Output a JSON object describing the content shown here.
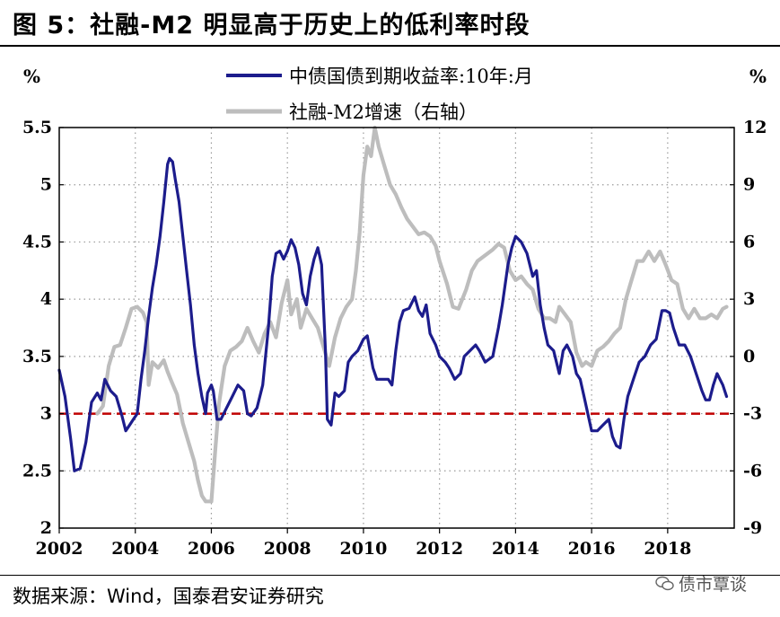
{
  "figure_label": "图 5：社融-M2 明显高于历史上的低利率时段",
  "source": "数据来源：Wind，国泰君安证券研究",
  "watermark": "债市覃谈",
  "watermark_icon": "wechat-icon",
  "chart_data": {
    "type": "line",
    "left_axis": {
      "unit_label": "%",
      "ylim": [
        2,
        5.5
      ],
      "ticks": [
        2,
        2.5,
        3,
        3.5,
        4,
        4.5,
        5,
        5.5
      ]
    },
    "right_axis": {
      "unit_label": "%",
      "ylim": [
        -9,
        12
      ],
      "ticks": [
        -9,
        -6,
        -3,
        0,
        3,
        6,
        9,
        12
      ]
    },
    "x_axis": {
      "xlim": [
        2002,
        2019.75
      ],
      "ticks": [
        2002,
        2004,
        2006,
        2008,
        2010,
        2012,
        2014,
        2016,
        2018
      ]
    },
    "grid": "dotted",
    "legend_position": "top-center",
    "series": [
      {
        "name": "中债国债到期收益率:10年:月",
        "axis": "left",
        "color": "#1c1c8c",
        "points": [
          [
            2002.0,
            3.38
          ],
          [
            2002.15,
            3.15
          ],
          [
            2002.3,
            2.78
          ],
          [
            2002.4,
            2.5
          ],
          [
            2002.55,
            2.52
          ],
          [
            2002.7,
            2.75
          ],
          [
            2002.85,
            3.1
          ],
          [
            2003.0,
            3.18
          ],
          [
            2003.1,
            3.12
          ],
          [
            2003.2,
            3.3
          ],
          [
            2003.35,
            3.2
          ],
          [
            2003.5,
            3.15
          ],
          [
            2003.65,
            2.98
          ],
          [
            2003.75,
            2.85
          ],
          [
            2003.85,
            2.9
          ],
          [
            2003.95,
            2.95
          ],
          [
            2004.05,
            3.0
          ],
          [
            2004.15,
            3.3
          ],
          [
            2004.25,
            3.55
          ],
          [
            2004.35,
            3.85
          ],
          [
            2004.45,
            4.1
          ],
          [
            2004.55,
            4.3
          ],
          [
            2004.65,
            4.55
          ],
          [
            2004.75,
            4.85
          ],
          [
            2004.85,
            5.18
          ],
          [
            2004.9,
            5.23
          ],
          [
            2004.98,
            5.2
          ],
          [
            2005.05,
            5.05
          ],
          [
            2005.15,
            4.85
          ],
          [
            2005.25,
            4.55
          ],
          [
            2005.35,
            4.25
          ],
          [
            2005.45,
            3.95
          ],
          [
            2005.55,
            3.6
          ],
          [
            2005.65,
            3.35
          ],
          [
            2005.75,
            3.15
          ],
          [
            2005.85,
            3.0
          ],
          [
            2005.9,
            3.18
          ],
          [
            2006.0,
            3.25
          ],
          [
            2006.05,
            3.2
          ],
          [
            2006.15,
            2.95
          ],
          [
            2006.25,
            2.95
          ],
          [
            2006.4,
            3.05
          ],
          [
            2006.55,
            3.15
          ],
          [
            2006.7,
            3.25
          ],
          [
            2006.85,
            3.2
          ],
          [
            2006.95,
            3.0
          ],
          [
            2007.05,
            2.98
          ],
          [
            2007.2,
            3.05
          ],
          [
            2007.35,
            3.25
          ],
          [
            2007.5,
            3.75
          ],
          [
            2007.6,
            4.2
          ],
          [
            2007.7,
            4.4
          ],
          [
            2007.8,
            4.42
          ],
          [
            2007.9,
            4.35
          ],
          [
            2008.0,
            4.42
          ],
          [
            2008.1,
            4.52
          ],
          [
            2008.2,
            4.45
          ],
          [
            2008.3,
            4.3
          ],
          [
            2008.4,
            4.05
          ],
          [
            2008.5,
            3.95
          ],
          [
            2008.6,
            4.2
          ],
          [
            2008.7,
            4.35
          ],
          [
            2008.8,
            4.45
          ],
          [
            2008.9,
            4.3
          ],
          [
            2009.0,
            3.55
          ],
          [
            2009.05,
            2.95
          ],
          [
            2009.15,
            2.9
          ],
          [
            2009.25,
            3.18
          ],
          [
            2009.35,
            3.15
          ],
          [
            2009.5,
            3.2
          ],
          [
            2009.6,
            3.45
          ],
          [
            2009.7,
            3.5
          ],
          [
            2009.85,
            3.55
          ],
          [
            2010.0,
            3.65
          ],
          [
            2010.1,
            3.68
          ],
          [
            2010.25,
            3.4
          ],
          [
            2010.35,
            3.3
          ],
          [
            2010.5,
            3.3
          ],
          [
            2010.65,
            3.3
          ],
          [
            2010.75,
            3.25
          ],
          [
            2010.85,
            3.55
          ],
          [
            2010.95,
            3.8
          ],
          [
            2011.05,
            3.9
          ],
          [
            2011.2,
            3.92
          ],
          [
            2011.35,
            4.02
          ],
          [
            2011.45,
            3.9
          ],
          [
            2011.55,
            3.85
          ],
          [
            2011.65,
            3.95
          ],
          [
            2011.75,
            3.7
          ],
          [
            2011.9,
            3.6
          ],
          [
            2012.0,
            3.5
          ],
          [
            2012.15,
            3.45
          ],
          [
            2012.25,
            3.4
          ],
          [
            2012.4,
            3.3
          ],
          [
            2012.55,
            3.35
          ],
          [
            2012.65,
            3.5
          ],
          [
            2012.8,
            3.55
          ],
          [
            2012.95,
            3.6
          ],
          [
            2013.05,
            3.55
          ],
          [
            2013.2,
            3.45
          ],
          [
            2013.4,
            3.5
          ],
          [
            2013.55,
            3.75
          ],
          [
            2013.65,
            3.95
          ],
          [
            2013.8,
            4.3
          ],
          [
            2013.9,
            4.45
          ],
          [
            2014.0,
            4.55
          ],
          [
            2014.15,
            4.5
          ],
          [
            2014.3,
            4.4
          ],
          [
            2014.45,
            4.2
          ],
          [
            2014.55,
            4.25
          ],
          [
            2014.65,
            3.95
          ],
          [
            2014.75,
            3.75
          ],
          [
            2014.85,
            3.6
          ],
          [
            2015.0,
            3.55
          ],
          [
            2015.15,
            3.35
          ],
          [
            2015.25,
            3.55
          ],
          [
            2015.35,
            3.6
          ],
          [
            2015.5,
            3.5
          ],
          [
            2015.6,
            3.35
          ],
          [
            2015.7,
            3.3
          ],
          [
            2015.8,
            3.15
          ],
          [
            2015.9,
            3.0
          ],
          [
            2016.0,
            2.85
          ],
          [
            2016.15,
            2.85
          ],
          [
            2016.3,
            2.9
          ],
          [
            2016.45,
            2.95
          ],
          [
            2016.55,
            2.8
          ],
          [
            2016.65,
            2.72
          ],
          [
            2016.75,
            2.7
          ],
          [
            2016.85,
            2.95
          ],
          [
            2016.95,
            3.15
          ],
          [
            2017.1,
            3.3
          ],
          [
            2017.25,
            3.45
          ],
          [
            2017.4,
            3.5
          ],
          [
            2017.55,
            3.6
          ],
          [
            2017.7,
            3.65
          ],
          [
            2017.85,
            3.9
          ],
          [
            2017.95,
            3.9
          ],
          [
            2018.05,
            3.88
          ],
          [
            2018.15,
            3.75
          ],
          [
            2018.3,
            3.6
          ],
          [
            2018.45,
            3.6
          ],
          [
            2018.6,
            3.5
          ],
          [
            2018.75,
            3.35
          ],
          [
            2018.9,
            3.2
          ],
          [
            2019.0,
            3.12
          ],
          [
            2019.1,
            3.12
          ],
          [
            2019.2,
            3.25
          ],
          [
            2019.3,
            3.35
          ],
          [
            2019.45,
            3.25
          ],
          [
            2019.55,
            3.15
          ]
        ]
      },
      {
        "name": "社融-M2增速（右轴）",
        "axis": "right",
        "color": "#bdbdbd",
        "points": [
          [
            2003.0,
            -3.0
          ],
          [
            2003.15,
            -2.6
          ],
          [
            2003.3,
            -0.5
          ],
          [
            2003.45,
            0.5
          ],
          [
            2003.6,
            0.6
          ],
          [
            2003.75,
            1.5
          ],
          [
            2003.9,
            2.5
          ],
          [
            2004.05,
            2.6
          ],
          [
            2004.2,
            2.3
          ],
          [
            2004.3,
            1.8
          ],
          [
            2004.35,
            -1.5
          ],
          [
            2004.45,
            -0.3
          ],
          [
            2004.6,
            -0.6
          ],
          [
            2004.75,
            -0.2
          ],
          [
            2004.85,
            -0.8
          ],
          [
            2004.95,
            -1.3
          ],
          [
            2005.1,
            -2.0
          ],
          [
            2005.25,
            -3.5
          ],
          [
            2005.4,
            -4.5
          ],
          [
            2005.55,
            -5.5
          ],
          [
            2005.65,
            -6.5
          ],
          [
            2005.75,
            -7.3
          ],
          [
            2005.85,
            -7.6
          ],
          [
            2006.0,
            -7.6
          ],
          [
            2006.1,
            -5.0
          ],
          [
            2006.2,
            -2.5
          ],
          [
            2006.35,
            -0.5
          ],
          [
            2006.5,
            0.3
          ],
          [
            2006.65,
            0.5
          ],
          [
            2006.8,
            0.8
          ],
          [
            2006.95,
            1.5
          ],
          [
            2007.1,
            0.8
          ],
          [
            2007.25,
            0.2
          ],
          [
            2007.4,
            1.2
          ],
          [
            2007.55,
            1.8
          ],
          [
            2007.7,
            1.0
          ],
          [
            2007.85,
            2.8
          ],
          [
            2008.0,
            4.0
          ],
          [
            2008.1,
            2.2
          ],
          [
            2008.25,
            3.0
          ],
          [
            2008.35,
            1.5
          ],
          [
            2008.5,
            2.5
          ],
          [
            2008.65,
            2.0
          ],
          [
            2008.8,
            1.5
          ],
          [
            2008.95,
            0.5
          ],
          [
            2009.1,
            -0.5
          ],
          [
            2009.25,
            1.0
          ],
          [
            2009.4,
            2.0
          ],
          [
            2009.55,
            2.6
          ],
          [
            2009.7,
            3.0
          ],
          [
            2009.8,
            4.5
          ],
          [
            2009.9,
            6.5
          ],
          [
            2010.0,
            9.5
          ],
          [
            2010.1,
            11.0
          ],
          [
            2010.2,
            10.5
          ],
          [
            2010.3,
            12.0
          ],
          [
            2010.4,
            11.0
          ],
          [
            2010.55,
            10.0
          ],
          [
            2010.7,
            9.0
          ],
          [
            2010.85,
            8.5
          ],
          [
            2011.0,
            7.8
          ],
          [
            2011.15,
            7.2
          ],
          [
            2011.3,
            6.8
          ],
          [
            2011.45,
            6.4
          ],
          [
            2011.6,
            6.5
          ],
          [
            2011.75,
            6.3
          ],
          [
            2011.9,
            5.8
          ],
          [
            2012.0,
            5.0
          ],
          [
            2012.2,
            3.8
          ],
          [
            2012.35,
            2.6
          ],
          [
            2012.5,
            2.5
          ],
          [
            2012.7,
            3.5
          ],
          [
            2012.85,
            4.5
          ],
          [
            2013.0,
            5.0
          ],
          [
            2013.2,
            5.3
          ],
          [
            2013.4,
            5.6
          ],
          [
            2013.55,
            5.9
          ],
          [
            2013.7,
            5.7
          ],
          [
            2013.85,
            4.5
          ],
          [
            2014.0,
            4.0
          ],
          [
            2014.15,
            4.2
          ],
          [
            2014.3,
            3.8
          ],
          [
            2014.45,
            3.5
          ],
          [
            2014.6,
            2.5
          ],
          [
            2014.75,
            2.0
          ],
          [
            2014.9,
            2.0
          ],
          [
            2015.05,
            1.8
          ],
          [
            2015.15,
            2.6
          ],
          [
            2015.3,
            2.2
          ],
          [
            2015.45,
            1.8
          ],
          [
            2015.6,
            0.2
          ],
          [
            2015.75,
            -0.5
          ],
          [
            2015.85,
            -0.3
          ],
          [
            2016.0,
            -0.5
          ],
          [
            2016.15,
            0.3
          ],
          [
            2016.3,
            0.5
          ],
          [
            2016.45,
            0.8
          ],
          [
            2016.6,
            1.2
          ],
          [
            2016.75,
            1.5
          ],
          [
            2016.9,
            3.0
          ],
          [
            2017.05,
            4.0
          ],
          [
            2017.2,
            5.0
          ],
          [
            2017.35,
            5.0
          ],
          [
            2017.5,
            5.5
          ],
          [
            2017.65,
            5.0
          ],
          [
            2017.8,
            5.5
          ],
          [
            2017.95,
            4.8
          ],
          [
            2018.1,
            4.0
          ],
          [
            2018.25,
            3.8
          ],
          [
            2018.4,
            2.5
          ],
          [
            2018.55,
            2.0
          ],
          [
            2018.7,
            2.5
          ],
          [
            2018.85,
            2.0
          ],
          [
            2019.0,
            2.0
          ],
          [
            2019.15,
            2.2
          ],
          [
            2019.3,
            2.0
          ],
          [
            2019.45,
            2.5
          ],
          [
            2019.55,
            2.6
          ]
        ]
      }
    ],
    "reference_line": {
      "axis": "left",
      "y": 3.0,
      "color": "#c00000",
      "style": "dashed"
    }
  }
}
